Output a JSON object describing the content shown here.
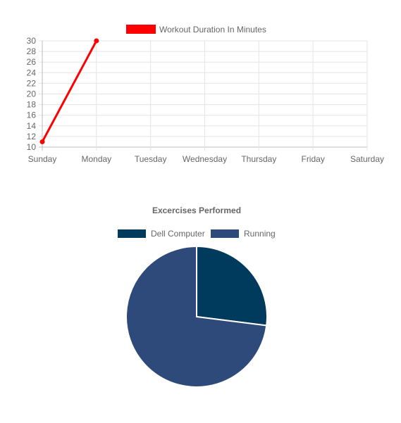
{
  "chart_data": [
    {
      "type": "line",
      "categories": [
        "Sunday",
        "Monday",
        "Tuesday",
        "Wednesday",
        "Thursday",
        "Friday",
        "Saturday"
      ],
      "series": [
        {
          "name": "Workout Duration In Minutes",
          "values": [
            11,
            30,
            null,
            null,
            null,
            null,
            null
          ],
          "color": "#ff0000"
        }
      ],
      "yticks": [
        10,
        12,
        14,
        16,
        18,
        20,
        22,
        24,
        26,
        28,
        30
      ],
      "ylim": [
        10,
        30
      ],
      "grid": true,
      "legend": "top"
    },
    {
      "type": "pie",
      "title": "Excercises Performed",
      "labels": [
        "Dell Computer",
        "Running"
      ],
      "values": [
        27,
        73
      ],
      "colors": [
        "#003a5c",
        "#2e4a7a"
      ],
      "legend": "top"
    }
  ]
}
